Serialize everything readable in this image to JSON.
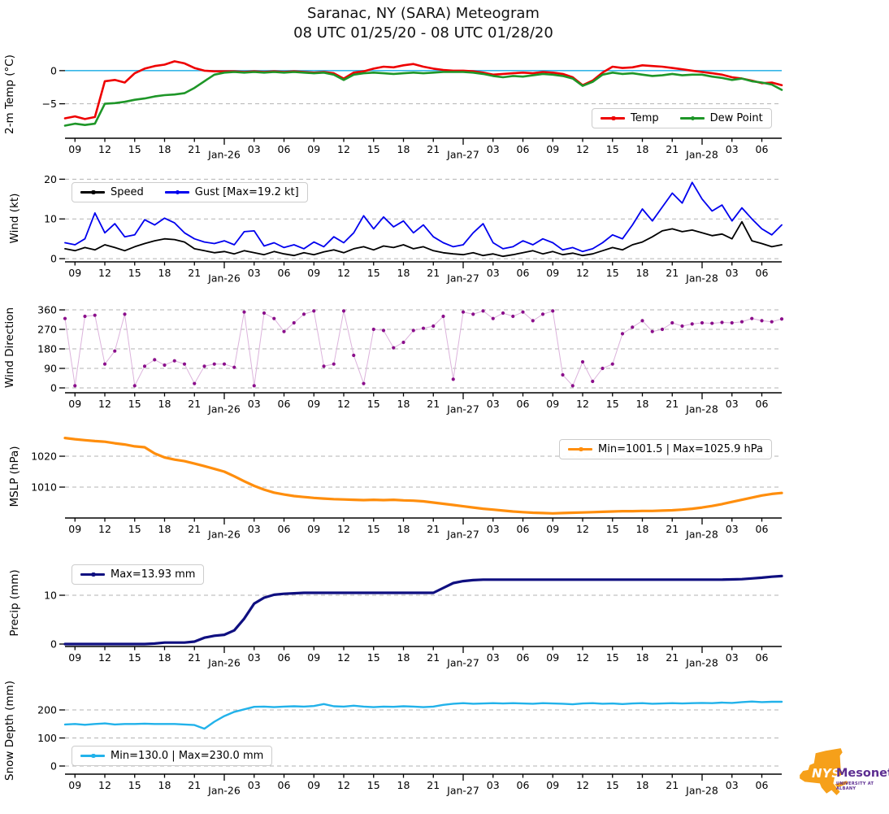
{
  "title": "Saranac, NY (SARA) Meteogram",
  "subtitle": "08 UTC 01/25/20 - 08 UTC 01/28/20",
  "logo": {
    "nys": "NYS",
    "mesonet": "Mesonet",
    "university": "UNIVERSITY AT ALBANY",
    "state_color": "#F6A01A",
    "text_color": "#5C2D91"
  },
  "x_axis": {
    "start_hour": 8,
    "end_hour": 80,
    "step_hours": 1,
    "ticks": [
      {
        "h": 9,
        "label": "09"
      },
      {
        "h": 12,
        "label": "12"
      },
      {
        "h": 15,
        "label": "15"
      },
      {
        "h": 18,
        "label": "18"
      },
      {
        "h": 21,
        "label": "21"
      },
      {
        "h": 24,
        "label": "Jan-26",
        "major": true
      },
      {
        "h": 27,
        "label": "03"
      },
      {
        "h": 30,
        "label": "06"
      },
      {
        "h": 33,
        "label": "09"
      },
      {
        "h": 36,
        "label": "12"
      },
      {
        "h": 39,
        "label": "15"
      },
      {
        "h": 42,
        "label": "18"
      },
      {
        "h": 45,
        "label": "21"
      },
      {
        "h": 48,
        "label": "Jan-27",
        "major": true
      },
      {
        "h": 51,
        "label": "03"
      },
      {
        "h": 54,
        "label": "06"
      },
      {
        "h": 57,
        "label": "09"
      },
      {
        "h": 60,
        "label": "12"
      },
      {
        "h": 63,
        "label": "15"
      },
      {
        "h": 66,
        "label": "18"
      },
      {
        "h": 69,
        "label": "21"
      },
      {
        "h": 72,
        "label": "Jan-28",
        "major": true
      },
      {
        "h": 75,
        "label": "03"
      },
      {
        "h": 78,
        "label": "06"
      }
    ]
  },
  "chart_data": [
    {
      "id": "temp",
      "type": "line",
      "ylabel": "2-m Temp (°C)",
      "ylim": [
        -10.2,
        3.05
      ],
      "yticks": [
        0,
        -5
      ],
      "grid_ticks": [
        -5
      ],
      "ref_line": {
        "value": 0,
        "color": "#37B6E8"
      },
      "legend_position": "lower-right",
      "series": [
        {
          "name": "Temp",
          "color": "#EE0000",
          "values": [
            -7.2,
            -6.9,
            -7.3,
            -7.0,
            -1.6,
            -1.4,
            -1.8,
            -0.4,
            0.3,
            0.7,
            0.9,
            1.4,
            1.1,
            0.4,
            0.0,
            -0.1,
            -0.1,
            -0.1,
            -0.2,
            -0.1,
            -0.2,
            -0.1,
            -0.2,
            -0.1,
            -0.2,
            -0.3,
            -0.2,
            -0.4,
            -1.2,
            -0.3,
            -0.1,
            0.3,
            0.6,
            0.5,
            0.8,
            1.0,
            0.6,
            0.3,
            0.1,
            0.0,
            0.0,
            -0.1,
            -0.3,
            -0.6,
            -0.5,
            -0.4,
            -0.3,
            -0.4,
            -0.2,
            -0.3,
            -0.5,
            -1.0,
            -2.2,
            -1.5,
            -0.3,
            0.6,
            0.4,
            0.5,
            0.8,
            0.7,
            0.6,
            0.4,
            0.2,
            0.0,
            -0.2,
            -0.4,
            -0.6,
            -1.0,
            -1.2,
            -1.5,
            -1.9,
            -1.8,
            -2.2
          ]
        },
        {
          "name": "Dew Point",
          "color": "#1E9628",
          "values": [
            -8.3,
            -8.0,
            -8.2,
            -8.0,
            -5.0,
            -4.9,
            -4.7,
            -4.4,
            -4.2,
            -3.9,
            -3.7,
            -3.6,
            -3.4,
            -2.6,
            -1.6,
            -0.6,
            -0.3,
            -0.2,
            -0.3,
            -0.2,
            -0.3,
            -0.2,
            -0.3,
            -0.2,
            -0.3,
            -0.4,
            -0.3,
            -0.6,
            -1.4,
            -0.6,
            -0.4,
            -0.3,
            -0.4,
            -0.5,
            -0.4,
            -0.3,
            -0.4,
            -0.3,
            -0.2,
            -0.2,
            -0.2,
            -0.3,
            -0.5,
            -0.8,
            -1.0,
            -0.8,
            -0.9,
            -0.7,
            -0.5,
            -0.6,
            -0.8,
            -1.2,
            -2.3,
            -1.7,
            -0.6,
            -0.3,
            -0.5,
            -0.4,
            -0.6,
            -0.8,
            -0.7,
            -0.5,
            -0.7,
            -0.6,
            -0.6,
            -0.9,
            -1.1,
            -1.4,
            -1.2,
            -1.6,
            -1.8,
            -2.1,
            -2.9
          ]
        }
      ]
    },
    {
      "id": "wind",
      "type": "line",
      "ylabel": "Wind (kt)",
      "ylim": [
        -0.8,
        21.1
      ],
      "yticks": [
        0,
        10,
        20
      ],
      "grid_ticks": [
        0,
        10,
        20
      ],
      "legend_position": "upper-left",
      "series": [
        {
          "name": "Speed",
          "color": "#000000",
          "values": [
            2.5,
            2.0,
            2.8,
            2.2,
            3.5,
            2.8,
            2.0,
            3.0,
            3.8,
            4.5,
            5.0,
            4.8,
            4.2,
            2.5,
            2.0,
            1.5,
            1.8,
            1.2,
            2.0,
            1.5,
            1.0,
            1.8,
            1.2,
            0.8,
            1.5,
            1.0,
            1.7,
            2.2,
            1.5,
            2.5,
            3.0,
            2.2,
            3.2,
            2.8,
            3.5,
            2.5,
            3.0,
            2.0,
            1.5,
            1.2,
            1.0,
            1.5,
            0.8,
            1.2,
            0.6,
            1.0,
            1.5,
            2.0,
            1.2,
            1.8,
            1.0,
            1.4,
            0.8,
            1.2,
            2.0,
            2.8,
            2.2,
            3.5,
            4.2,
            5.5,
            7.0,
            7.5,
            6.8,
            7.2,
            6.5,
            5.8,
            6.2,
            5.0,
            9.3,
            4.5,
            3.8,
            3.0,
            3.5
          ]
        },
        {
          "name": "Gust [Max=19.2 kt]",
          "color": "#0000EE",
          "values": [
            4.0,
            3.5,
            5.0,
            11.5,
            6.5,
            8.8,
            5.5,
            6.0,
            9.8,
            8.5,
            10.2,
            9.0,
            6.5,
            5.0,
            4.2,
            3.8,
            4.5,
            3.5,
            6.8,
            7.0,
            3.2,
            4.0,
            2.8,
            3.5,
            2.5,
            4.2,
            3.0,
            5.5,
            4.0,
            6.5,
            10.8,
            7.5,
            10.5,
            8.0,
            9.5,
            6.5,
            8.5,
            5.5,
            4.0,
            3.0,
            3.5,
            6.5,
            8.8,
            4.0,
            2.5,
            3.0,
            4.5,
            3.5,
            5.0,
            4.0,
            2.2,
            2.8,
            1.8,
            2.5,
            4.0,
            6.0,
            5.0,
            8.5,
            12.5,
            9.5,
            13.0,
            16.5,
            14.0,
            19.2,
            15.0,
            12.0,
            13.5,
            9.5,
            12.8,
            10.0,
            7.5,
            6.0,
            8.5
          ]
        }
      ]
    },
    {
      "id": "wdir",
      "type": "scatter",
      "ylabel": "Wind Direction",
      "ylim": [
        -22.5,
        393.9
      ],
      "yticks": [
        0,
        90,
        180,
        270,
        360
      ],
      "grid_ticks": [
        0,
        90,
        180,
        270,
        360
      ],
      "legend_position": null,
      "series": [
        {
          "name": "Wind Direction",
          "color": "#8B0F8B",
          "line_color": "#DCB4DC",
          "values": [
            320,
            10,
            330,
            335,
            110,
            170,
            340,
            10,
            100,
            130,
            105,
            125,
            110,
            20,
            100,
            110,
            110,
            95,
            350,
            10,
            345,
            320,
            260,
            300,
            340,
            355,
            100,
            110,
            355,
            150,
            20,
            270,
            265,
            185,
            210,
            265,
            275,
            285,
            330,
            40,
            350,
            340,
            355,
            320,
            345,
            330,
            350,
            310,
            340,
            355,
            60,
            10,
            120,
            30,
            90,
            110,
            250,
            280,
            310,
            260,
            270,
            300,
            285,
            295,
            300,
            298,
            302,
            300,
            305,
            320,
            310,
            305,
            318
          ]
        }
      ]
    },
    {
      "id": "mslp",
      "type": "line",
      "ylabel": "MSLP (hPa)",
      "ylim": [
        1000.0,
        1026.85
      ],
      "yticks": [
        1010,
        1020
      ],
      "grid_ticks": [
        1010,
        1020
      ],
      "legend_position": "upper-right",
      "series": [
        {
          "name": "Min=1001.5 | Max=1025.9 hPa",
          "color": "#FF8E0D",
          "values": [
            1025.9,
            1025.5,
            1025.2,
            1024.9,
            1024.7,
            1024.2,
            1023.8,
            1023.2,
            1022.9,
            1020.9,
            1019.6,
            1018.9,
            1018.4,
            1017.6,
            1016.8,
            1015.9,
            1015.0,
            1013.5,
            1011.9,
            1010.4,
            1009.2,
            1008.2,
            1007.6,
            1007.1,
            1006.8,
            1006.5,
            1006.3,
            1006.1,
            1006.0,
            1005.9,
            1005.8,
            1005.9,
            1005.8,
            1005.9,
            1005.7,
            1005.6,
            1005.4,
            1005.0,
            1004.6,
            1004.2,
            1003.8,
            1003.4,
            1003.0,
            1002.7,
            1002.4,
            1002.1,
            1001.9,
            1001.7,
            1001.6,
            1001.5,
            1001.6,
            1001.7,
            1001.8,
            1001.9,
            1002.0,
            1002.1,
            1002.2,
            1002.2,
            1002.3,
            1002.3,
            1002.4,
            1002.5,
            1002.7,
            1003.0,
            1003.4,
            1003.9,
            1004.5,
            1005.2,
            1005.9,
            1006.6,
            1007.3,
            1007.8,
            1008.1
          ]
        }
      ]
    },
    {
      "id": "precip",
      "type": "line",
      "ylabel": "Precip (mm)",
      "ylim": [
        -0.5,
        17.33
      ],
      "yticks": [
        0,
        10
      ],
      "grid_ticks": [
        10
      ],
      "legend_position": "upper-left",
      "series": [
        {
          "name": "Max=13.93 mm",
          "color": "#0F0F80",
          "values": [
            0.0,
            0.0,
            0.0,
            0.0,
            0.0,
            0.0,
            0.0,
            0.0,
            0.0,
            0.1,
            0.3,
            0.3,
            0.3,
            0.5,
            1.3,
            1.7,
            1.9,
            2.8,
            5.2,
            8.3,
            9.5,
            10.1,
            10.3,
            10.4,
            10.5,
            10.5,
            10.5,
            10.5,
            10.5,
            10.5,
            10.5,
            10.5,
            10.5,
            10.5,
            10.5,
            10.5,
            10.5,
            10.5,
            11.5,
            12.5,
            12.9,
            13.1,
            13.2,
            13.2,
            13.2,
            13.2,
            13.2,
            13.2,
            13.2,
            13.2,
            13.2,
            13.2,
            13.2,
            13.2,
            13.2,
            13.2,
            13.2,
            13.2,
            13.2,
            13.2,
            13.2,
            13.2,
            13.2,
            13.2,
            13.2,
            13.2,
            13.2,
            13.25,
            13.3,
            13.45,
            13.6,
            13.8,
            13.93
          ]
        }
      ]
    },
    {
      "id": "snow",
      "type": "line",
      "ylabel": "Snow Depth (mm)",
      "ylim": [
        -29,
        281.2
      ],
      "yticks": [
        0,
        100,
        200
      ],
      "grid_ticks": [
        0,
        100,
        200
      ],
      "legend_position": "lower-left",
      "series": [
        {
          "name": "Min=130.0 | Max=230.0 mm",
          "color": "#22B2EA",
          "values": [
            148,
            150,
            147,
            150,
            152,
            148,
            150,
            150,
            151,
            150,
            150,
            150,
            148,
            146,
            133,
            158,
            178,
            193,
            202,
            211,
            212,
            210,
            212,
            213,
            212,
            214,
            221,
            213,
            212,
            215,
            212,
            210,
            212,
            211,
            213,
            212,
            210,
            212,
            218,
            222,
            224,
            222,
            223,
            224,
            223,
            224,
            223,
            222,
            224,
            223,
            222,
            220,
            223,
            224,
            222,
            223,
            221,
            223,
            224,
            222,
            223,
            224,
            223,
            224,
            225,
            224,
            226,
            225,
            228,
            230,
            228,
            229,
            229
          ]
        }
      ]
    }
  ]
}
